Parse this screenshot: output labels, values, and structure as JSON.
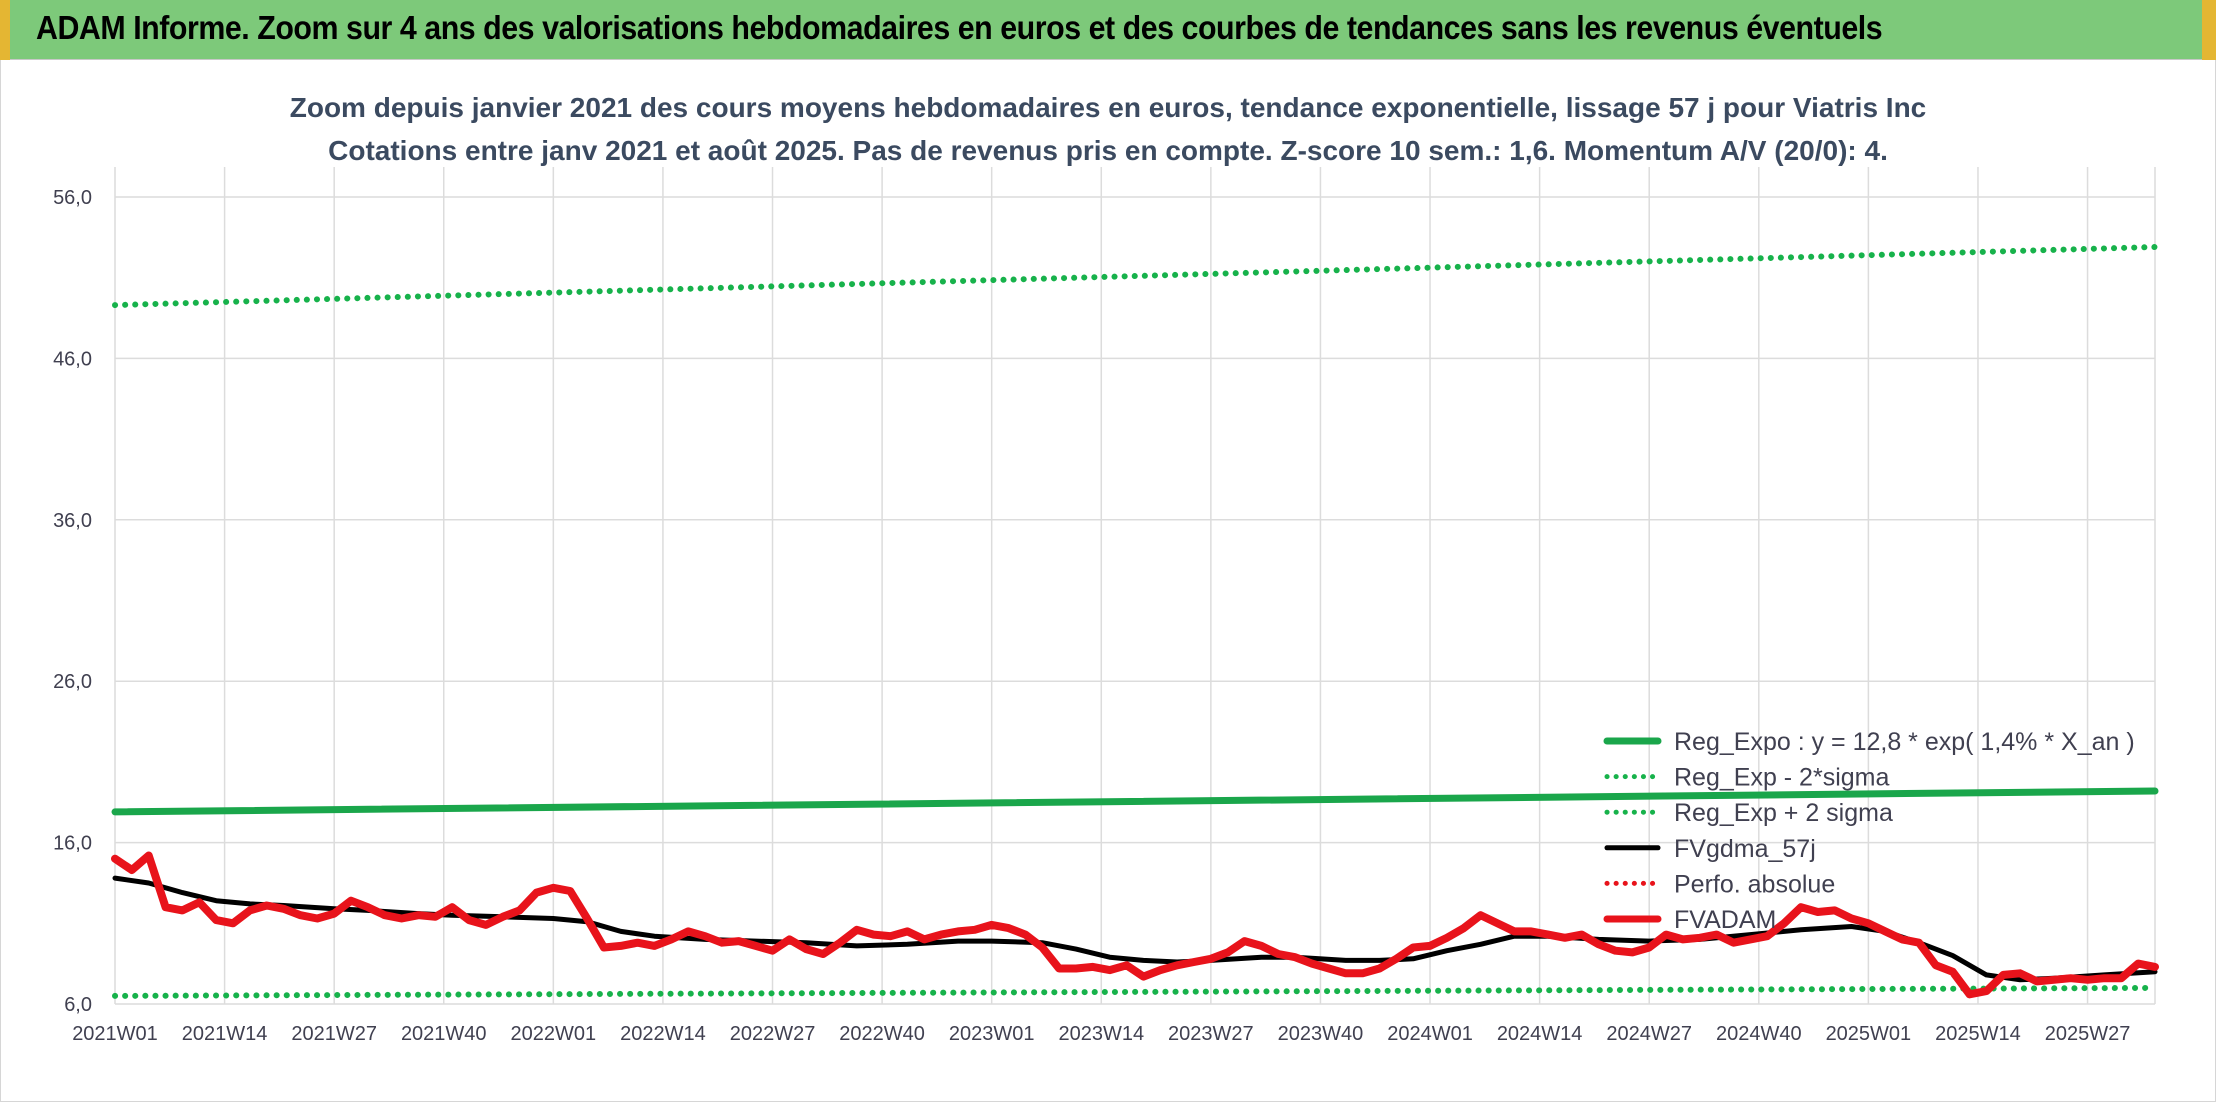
{
  "banner": {
    "title": "ADAM Informe. Zoom sur 4 ans des valorisations hebdomadaires en euros et des courbes de tendances sans les revenus éventuels"
  },
  "colors": {
    "banner_bg": "#7dc97a",
    "banner_accent": "#e4b633",
    "trend_green": "#1aa64b",
    "band_green": "#17b24b",
    "fvgdma": "#000000",
    "fvadam": "#e8131b",
    "perfo": "#e8131b",
    "grid": "#dcdcdc"
  },
  "chart_data": {
    "type": "line",
    "title_line1": "Zoom depuis janvier 2021 des cours moyens hebdomadaires en euros, tendance exponentielle, lissage 57 j pour Viatris Inc",
    "title_line2": "Cotations entre janv 2021 et août 2025. Pas de revenus pris en compte. Z-score 10 sem.: 1,6. Momentum A/V (20/0): 4.",
    "xlabel": "",
    "ylabel": "",
    "ylim": [
      6,
      56
    ],
    "yticks": [
      "6,0",
      "16,0",
      "26,0",
      "36,0",
      "46,0",
      "56,0"
    ],
    "ytick_values": [
      6,
      16,
      26,
      36,
      46,
      56
    ],
    "x_tick_labels": [
      "2021W01",
      "2021W14",
      "2021W27",
      "2021W40",
      "2022W01",
      "2022W14",
      "2022W27",
      "2022W40",
      "2023W01",
      "2023W14",
      "2023W27",
      "2023W40",
      "2024W01",
      "2024W14",
      "2024W27",
      "2024W40",
      "2025W01",
      "2025W14",
      "2025W27"
    ],
    "x_tick_week_index": [
      0,
      13,
      26,
      39,
      52,
      65,
      78,
      91,
      104,
      117,
      130,
      143,
      156,
      169,
      182,
      195,
      208,
      221,
      234
    ],
    "weeks_total": 243,
    "grid": true,
    "legend_position": "right",
    "legend": [
      {
        "label": "Reg_Expo : y = 12,8 * exp( 1,4% *  X_an )",
        "style": "solid-thick",
        "color": "#1aa64b"
      },
      {
        "label": "Reg_Exp - 2*sigma",
        "style": "dotted",
        "color": "#17b24b"
      },
      {
        "label": "Reg_Exp + 2 sigma",
        "style": "dotted",
        "color": "#17b24b"
      },
      {
        "label": "FVgdma_57j",
        "style": "solid",
        "color": "#000000"
      },
      {
        "label": "Perfo. absolue",
        "style": "dotted",
        "color": "#e8131b"
      },
      {
        "label": "FVADAM",
        "style": "solid-thick",
        "color": "#e8131b"
      }
    ],
    "series": [
      {
        "name": "Reg_Expo : y = 12,8 * exp( 1,4% *  X_an )",
        "kind": "trend",
        "x": [
          0,
          242
        ],
        "y": [
          17.9,
          19.2
        ]
      },
      {
        "name": "Reg_Exp - 2*sigma",
        "kind": "band",
        "x": [
          0,
          242
        ],
        "y": [
          6.5,
          7.0
        ]
      },
      {
        "name": "Reg_Exp + 2 sigma",
        "kind": "band",
        "x": [
          0,
          242
        ],
        "y": [
          49.3,
          52.9
        ]
      },
      {
        "name": "FVgdma_57j",
        "kind": "smooth",
        "x": [
          0,
          4,
          8,
          12,
          16,
          20,
          26,
          30,
          36,
          40,
          46,
          52,
          56,
          60,
          64,
          70,
          76,
          82,
          88,
          94,
          100,
          104,
          110,
          114,
          118,
          122,
          126,
          130,
          136,
          140,
          146,
          150,
          154,
          158,
          162,
          166,
          170,
          176,
          182,
          188,
          194,
          200,
          206,
          210,
          214,
          218,
          222,
          226,
          230,
          236,
          242
        ],
        "y": [
          13.8,
          13.5,
          12.9,
          12.4,
          12.2,
          12.1,
          11.9,
          11.8,
          11.6,
          11.5,
          11.4,
          11.3,
          11.1,
          10.5,
          10.2,
          10.0,
          9.9,
          9.8,
          9.6,
          9.7,
          9.9,
          9.9,
          9.8,
          9.4,
          8.9,
          8.7,
          8.6,
          8.7,
          8.9,
          8.9,
          8.7,
          8.7,
          8.8,
          9.3,
          9.7,
          10.2,
          10.2,
          10.0,
          9.9,
          10.0,
          10.3,
          10.6,
          10.8,
          10.5,
          9.8,
          9.0,
          7.8,
          7.5,
          7.6,
          7.8,
          8.0
        ]
      },
      {
        "name": "FVADAM",
        "kind": "price",
        "x": [
          0,
          2,
          4,
          6,
          8,
          10,
          12,
          14,
          16,
          18,
          20,
          22,
          24,
          26,
          28,
          30,
          32,
          34,
          36,
          38,
          40,
          42,
          44,
          46,
          48,
          50,
          52,
          54,
          56,
          58,
          60,
          62,
          64,
          66,
          68,
          70,
          72,
          74,
          76,
          78,
          80,
          82,
          84,
          86,
          88,
          90,
          92,
          94,
          96,
          98,
          100,
          102,
          104,
          106,
          108,
          110,
          112,
          114,
          116,
          118,
          120,
          122,
          124,
          126,
          128,
          130,
          132,
          134,
          136,
          138,
          140,
          142,
          144,
          146,
          148,
          150,
          152,
          154,
          156,
          158,
          160,
          162,
          164,
          166,
          168,
          170,
          172,
          174,
          176,
          178,
          180,
          182,
          184,
          186,
          188,
          190,
          192,
          194,
          196,
          198,
          200,
          202,
          204,
          206,
          208,
          210,
          212,
          214,
          216,
          218,
          220,
          222,
          224,
          226,
          228,
          230,
          232,
          234,
          236,
          238,
          240,
          242
        ],
        "y": [
          15.0,
          14.3,
          15.2,
          12.0,
          11.8,
          12.3,
          11.2,
          11.0,
          11.8,
          12.1,
          11.9,
          11.5,
          11.3,
          11.6,
          12.4,
          12.0,
          11.5,
          11.3,
          11.5,
          11.4,
          12.0,
          11.2,
          10.9,
          11.4,
          11.8,
          12.9,
          13.2,
          13.0,
          11.3,
          9.5,
          9.6,
          9.8,
          9.6,
          10.0,
          10.5,
          10.2,
          9.8,
          9.9,
          9.6,
          9.3,
          10.0,
          9.4,
          9.1,
          9.8,
          10.6,
          10.3,
          10.2,
          10.5,
          10.0,
          10.3,
          10.5,
          10.6,
          10.9,
          10.7,
          10.3,
          9.5,
          8.2,
          8.2,
          8.3,
          8.1,
          8.4,
          7.7,
          8.1,
          8.4,
          8.6,
          8.8,
          9.2,
          9.9,
          9.6,
          9.1,
          8.9,
          8.5,
          8.2,
          7.9,
          7.9,
          8.2,
          8.8,
          9.5,
          9.6,
          10.1,
          10.7,
          11.5,
          11.0,
          10.5,
          10.5,
          10.3,
          10.1,
          10.3,
          9.7,
          9.3,
          9.2,
          9.5,
          10.3,
          10.0,
          10.1,
          10.3,
          9.8,
          10.0,
          10.2,
          11.0,
          12.0,
          11.7,
          11.8,
          11.3,
          11.0,
          10.5,
          10.0,
          9.8,
          8.4,
          8.0,
          6.6,
          6.8,
          7.8,
          7.9,
          7.4,
          7.5,
          7.6,
          7.5,
          7.6,
          7.6,
          8.5,
          8.3
        ]
      }
    ]
  }
}
